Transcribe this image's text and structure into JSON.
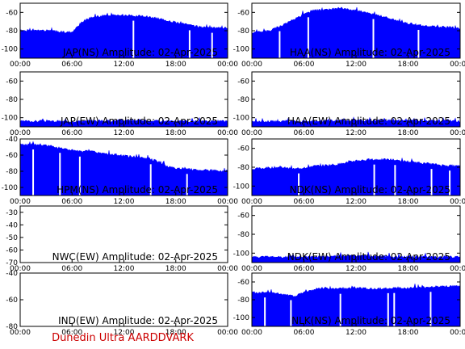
{
  "footer": "Dunedin Ultra AARDDVARK",
  "colors": {
    "trace": "#0000ff",
    "frame": "#000000",
    "footer": "#cc0000",
    "gaps": "#ffffff"
  },
  "chart_data": [
    {
      "type": "area",
      "title": "JAP(NS) Amplitude: 02-Apr-2025",
      "x_ticks": [
        "00:00",
        "06:00",
        "12:00",
        "18:00",
        "00:00"
      ],
      "y_ticks": [
        "-100",
        "-80",
        "-60"
      ],
      "ylim": [
        -110,
        -50
      ],
      "xlim_hours": [
        0,
        24
      ],
      "series": [
        {
          "x": [
            0,
            3,
            6,
            7,
            8,
            10,
            12,
            15,
            17,
            18,
            20,
            22,
            24
          ],
          "y": [
            -80,
            -80,
            -82,
            -72,
            -66,
            -63,
            -63,
            -65,
            -69,
            -71,
            -75,
            -77,
            -77
          ]
        }
      ],
      "gaps_hours": [
        13.1,
        19.6,
        22.2
      ]
    },
    {
      "type": "area",
      "title": "HAA(NS) Amplitude: 02-Apr-2025",
      "x_ticks": [
        "00:00",
        "06:00",
        "12:00",
        "18:00",
        "00:00"
      ],
      "y_ticks": [
        "-100",
        "-80",
        "-60"
      ],
      "ylim": [
        -110,
        -50
      ],
      "xlim_hours": [
        0,
        24
      ],
      "series": [
        {
          "x": [
            0,
            2,
            4,
            6,
            7,
            9,
            10,
            12,
            14,
            16,
            17,
            18,
            20,
            22,
            24
          ],
          "y": [
            -82,
            -80,
            -72,
            -62,
            -58,
            -57,
            -55,
            -58,
            -62,
            -67,
            -70,
            -72,
            -75,
            -76,
            -77
          ]
        }
      ],
      "gaps_hours": [
        3.2,
        6.5,
        14.0,
        19.2
      ]
    },
    {
      "type": "area",
      "title": "JAP(EW) Amplitude: 02-Apr-2025",
      "x_ticks": [
        "00:00",
        "06:00",
        "12:00",
        "18:00",
        "00:00"
      ],
      "y_ticks": [
        "-100",
        "-80",
        "-60"
      ],
      "ylim": [
        -110,
        -50
      ],
      "xlim_hours": [
        0,
        24
      ],
      "series": [
        {
          "x": [
            0,
            6,
            12,
            18,
            24
          ],
          "y": [
            -104,
            -104,
            -103,
            -104,
            -104
          ]
        }
      ],
      "gaps_hours": []
    },
    {
      "type": "area",
      "title": "HAA(EW) Amplitude: 02-Apr-2025",
      "x_ticks": [
        "00:00",
        "06:00",
        "12:00",
        "18:00",
        "00:00"
      ],
      "y_ticks": [
        "-100",
        "-80",
        "-60"
      ],
      "ylim": [
        -110,
        -50
      ],
      "xlim_hours": [
        0,
        24
      ],
      "series": [
        {
          "x": [
            0,
            6,
            12,
            18,
            24
          ],
          "y": [
            -104,
            -104,
            -103,
            -103,
            -104
          ]
        }
      ],
      "gaps_hours": []
    },
    {
      "type": "area",
      "title": "HPM(NS) Amplitude: 02-Apr-2025",
      "x_ticks": [
        "00:00",
        "06:00",
        "12:00",
        "18:00",
        "00:00"
      ],
      "y_ticks": [
        "-100",
        "-80",
        "-60",
        "-40"
      ],
      "ylim": [
        -110,
        -40
      ],
      "xlim_hours": [
        0,
        24
      ],
      "series": [
        {
          "x": [
            0,
            2,
            3,
            5,
            7,
            8,
            10,
            12,
            14,
            15,
            16,
            17,
            18,
            20,
            24
          ],
          "y": [
            -47,
            -47,
            -48,
            -52,
            -56,
            -55,
            -59,
            -61,
            -63,
            -65,
            -68,
            -74,
            -76,
            -78,
            -80
          ]
        }
      ],
      "gaps_hours": [
        1.5,
        4.6,
        6.9,
        15.1,
        19.3
      ]
    },
    {
      "type": "area",
      "title": "NDK(NS) Amplitude: 02-Apr-2025",
      "x_ticks": [
        "00:00",
        "06:00",
        "12:00",
        "18:00",
        "00:00"
      ],
      "y_ticks": [
        "-100",
        "-80",
        "-60"
      ],
      "ylim": [
        -110,
        -50
      ],
      "xlim_hours": [
        0,
        24
      ],
      "series": [
        {
          "x": [
            0,
            3,
            5,
            7,
            10,
            12,
            14,
            16,
            18,
            20,
            22,
            24
          ],
          "y": [
            -82,
            -80,
            -82,
            -79,
            -77,
            -73,
            -72,
            -72,
            -74,
            -76,
            -78,
            -79
          ]
        }
      ],
      "gaps_hours": [
        5.4,
        14.1,
        16.5,
        20.7,
        22.8
      ]
    },
    {
      "type": "area",
      "title": "NWC(EW) Amplitude: 02-Apr-2025",
      "x_ticks": [
        "00:00",
        "06:00",
        "12:00",
        "18:00",
        "00:00"
      ],
      "y_ticks": [
        "-70",
        "-60",
        "-50",
        "-40",
        "-30"
      ],
      "ylim": [
        -70,
        -25
      ],
      "xlim_hours": [
        0,
        24
      ],
      "series": [],
      "gaps_hours": []
    },
    {
      "type": "area",
      "title": "NDK(EW) Amplitude: 02-Apr-2025",
      "x_ticks": [
        "00:00",
        "06:00",
        "12:00",
        "18:00",
        "00:00"
      ],
      "y_ticks": [
        "-100",
        "-80",
        "-60"
      ],
      "ylim": [
        -110,
        -50
      ],
      "xlim_hours": [
        0,
        24
      ],
      "series": [
        {
          "x": [
            0,
            6,
            12,
            18,
            24
          ],
          "y": [
            -104,
            -104,
            -103,
            -104,
            -104
          ]
        }
      ],
      "gaps_hours": []
    },
    {
      "type": "area",
      "title": "IND(EW) Amplitude: 02-Apr-2025",
      "x_ticks": [
        "00:00",
        "06:00",
        "12:00",
        "18:00",
        "00:00"
      ],
      "y_ticks": [
        "-80",
        "-60",
        "-40"
      ],
      "ylim": [
        -80,
        -40
      ],
      "xlim_hours": [
        0,
        24
      ],
      "series": [],
      "gaps_hours": []
    },
    {
      "type": "area",
      "title": "NLK(NS) Amplitude: 02-Apr-2025",
      "x_ticks": [
        "00:00",
        "06:00",
        "12:00",
        "18:00",
        "00:00"
      ],
      "y_ticks": [
        "-100",
        "-80",
        "-60"
      ],
      "ylim": [
        -110,
        -50
      ],
      "xlim_hours": [
        0,
        24
      ],
      "series": [
        {
          "x": [
            0,
            2,
            4,
            5,
            6,
            8,
            10,
            12,
            14,
            16,
            18,
            20,
            22,
            24
          ],
          "y": [
            -72,
            -72,
            -74,
            -76,
            -71,
            -67,
            -68,
            -67,
            -68,
            -67,
            -67,
            -66,
            -65,
            -65
          ]
        }
      ],
      "gaps_hours": [
        1.5,
        4.5,
        10.2,
        15.7,
        16.4,
        20.6
      ]
    }
  ]
}
